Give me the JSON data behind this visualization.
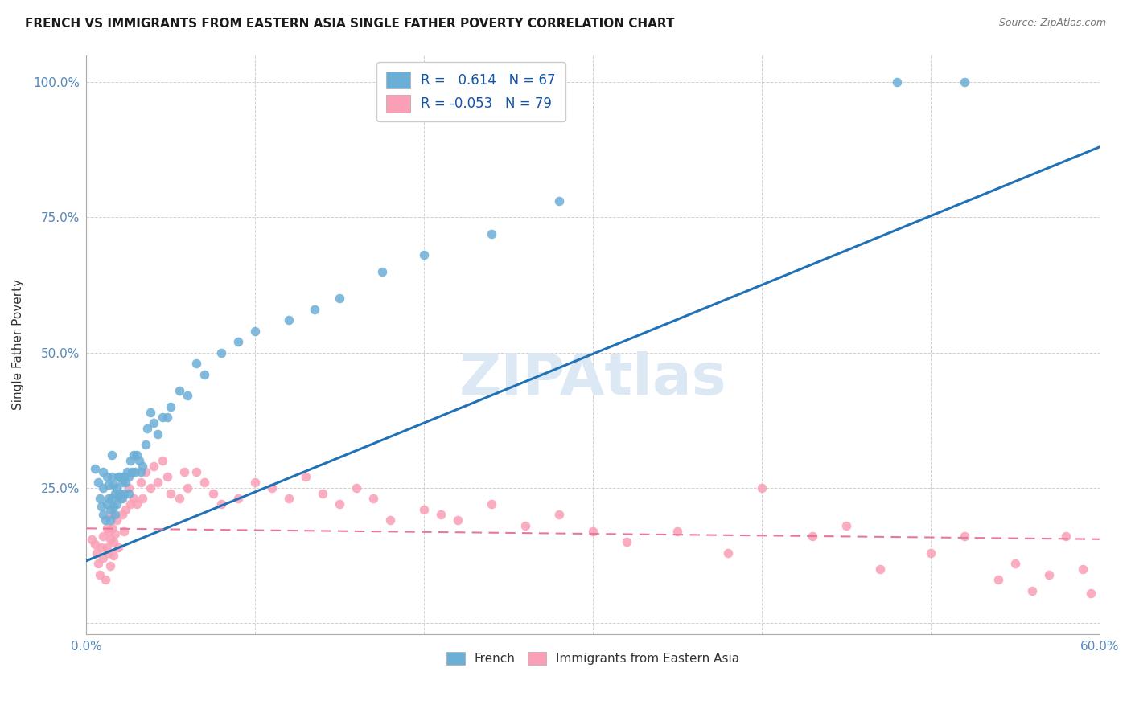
{
  "title": "FRENCH VS IMMIGRANTS FROM EASTERN ASIA SINGLE FATHER POVERTY CORRELATION CHART",
  "source": "Source: ZipAtlas.com",
  "ylabel": "Single Father Poverty",
  "xlim": [
    0.0,
    0.6
  ],
  "ylim": [
    -0.02,
    1.05
  ],
  "xticks": [
    0.0,
    0.1,
    0.2,
    0.3,
    0.4,
    0.5,
    0.6
  ],
  "yticks": [
    0.0,
    0.25,
    0.5,
    0.75,
    1.0
  ],
  "blue_R": 0.614,
  "blue_N": 67,
  "pink_R": -0.053,
  "pink_N": 79,
  "blue_color": "#6baed6",
  "pink_color": "#fa9fb5",
  "blue_line_color": "#2171b5",
  "pink_line_color": "#e8789a",
  "watermark": "ZIPAtlas",
  "watermark_color": "#dce9f5",
  "legend_label_blue": "French",
  "legend_label_pink": "Immigrants from Eastern Asia",
  "blue_trend_x0": 0.0,
  "blue_trend_y0": 0.115,
  "blue_trend_x1": 0.6,
  "blue_trend_y1": 0.88,
  "pink_trend_x0": 0.0,
  "pink_trend_y0": 0.175,
  "pink_trend_x1": 0.6,
  "pink_trend_y1": 0.155,
  "blue_scatter_x": [
    0.005,
    0.007,
    0.008,
    0.009,
    0.01,
    0.01,
    0.01,
    0.011,
    0.012,
    0.012,
    0.013,
    0.013,
    0.014,
    0.014,
    0.015,
    0.015,
    0.015,
    0.016,
    0.016,
    0.017,
    0.017,
    0.018,
    0.018,
    0.019,
    0.019,
    0.02,
    0.02,
    0.021,
    0.021,
    0.022,
    0.022,
    0.023,
    0.024,
    0.025,
    0.025,
    0.026,
    0.027,
    0.028,
    0.029,
    0.03,
    0.031,
    0.032,
    0.033,
    0.035,
    0.036,
    0.038,
    0.04,
    0.042,
    0.045,
    0.048,
    0.05,
    0.055,
    0.06,
    0.065,
    0.07,
    0.08,
    0.09,
    0.1,
    0.12,
    0.135,
    0.15,
    0.175,
    0.2,
    0.24,
    0.28,
    0.48,
    0.52
  ],
  "blue_scatter_y": [
    0.285,
    0.26,
    0.23,
    0.215,
    0.28,
    0.25,
    0.2,
    0.19,
    0.27,
    0.22,
    0.255,
    0.23,
    0.21,
    0.19,
    0.31,
    0.27,
    0.23,
    0.255,
    0.215,
    0.24,
    0.2,
    0.25,
    0.22,
    0.27,
    0.235,
    0.27,
    0.24,
    0.26,
    0.23,
    0.27,
    0.24,
    0.26,
    0.28,
    0.27,
    0.24,
    0.3,
    0.28,
    0.31,
    0.28,
    0.31,
    0.3,
    0.28,
    0.29,
    0.33,
    0.36,
    0.39,
    0.37,
    0.35,
    0.38,
    0.38,
    0.4,
    0.43,
    0.42,
    0.48,
    0.46,
    0.5,
    0.52,
    0.54,
    0.56,
    0.58,
    0.6,
    0.65,
    0.68,
    0.72,
    0.78,
    1.0,
    1.0
  ],
  "pink_scatter_x": [
    0.003,
    0.005,
    0.006,
    0.007,
    0.008,
    0.009,
    0.01,
    0.01,
    0.011,
    0.012,
    0.012,
    0.013,
    0.013,
    0.014,
    0.014,
    0.015,
    0.015,
    0.016,
    0.016,
    0.017,
    0.018,
    0.019,
    0.02,
    0.021,
    0.022,
    0.023,
    0.025,
    0.026,
    0.028,
    0.03,
    0.032,
    0.033,
    0.035,
    0.038,
    0.04,
    0.042,
    0.045,
    0.048,
    0.05,
    0.055,
    0.058,
    0.06,
    0.065,
    0.07,
    0.075,
    0.08,
    0.09,
    0.1,
    0.11,
    0.12,
    0.13,
    0.14,
    0.15,
    0.16,
    0.17,
    0.18,
    0.2,
    0.21,
    0.22,
    0.24,
    0.26,
    0.28,
    0.3,
    0.32,
    0.35,
    0.38,
    0.4,
    0.43,
    0.45,
    0.47,
    0.5,
    0.52,
    0.54,
    0.55,
    0.56,
    0.57,
    0.58,
    0.59,
    0.595
  ],
  "pink_scatter_y": [
    0.155,
    0.145,
    0.13,
    0.11,
    0.09,
    0.14,
    0.16,
    0.12,
    0.08,
    0.175,
    0.14,
    0.17,
    0.13,
    0.105,
    0.155,
    0.2,
    0.175,
    0.15,
    0.125,
    0.165,
    0.19,
    0.14,
    0.23,
    0.2,
    0.17,
    0.21,
    0.25,
    0.22,
    0.23,
    0.22,
    0.26,
    0.23,
    0.28,
    0.25,
    0.29,
    0.26,
    0.3,
    0.27,
    0.24,
    0.23,
    0.28,
    0.25,
    0.28,
    0.26,
    0.24,
    0.22,
    0.23,
    0.26,
    0.25,
    0.23,
    0.27,
    0.24,
    0.22,
    0.25,
    0.23,
    0.19,
    0.21,
    0.2,
    0.19,
    0.22,
    0.18,
    0.2,
    0.17,
    0.15,
    0.17,
    0.13,
    0.25,
    0.16,
    0.18,
    0.1,
    0.13,
    0.16,
    0.08,
    0.11,
    0.06,
    0.09,
    0.16,
    0.1,
    0.055
  ]
}
